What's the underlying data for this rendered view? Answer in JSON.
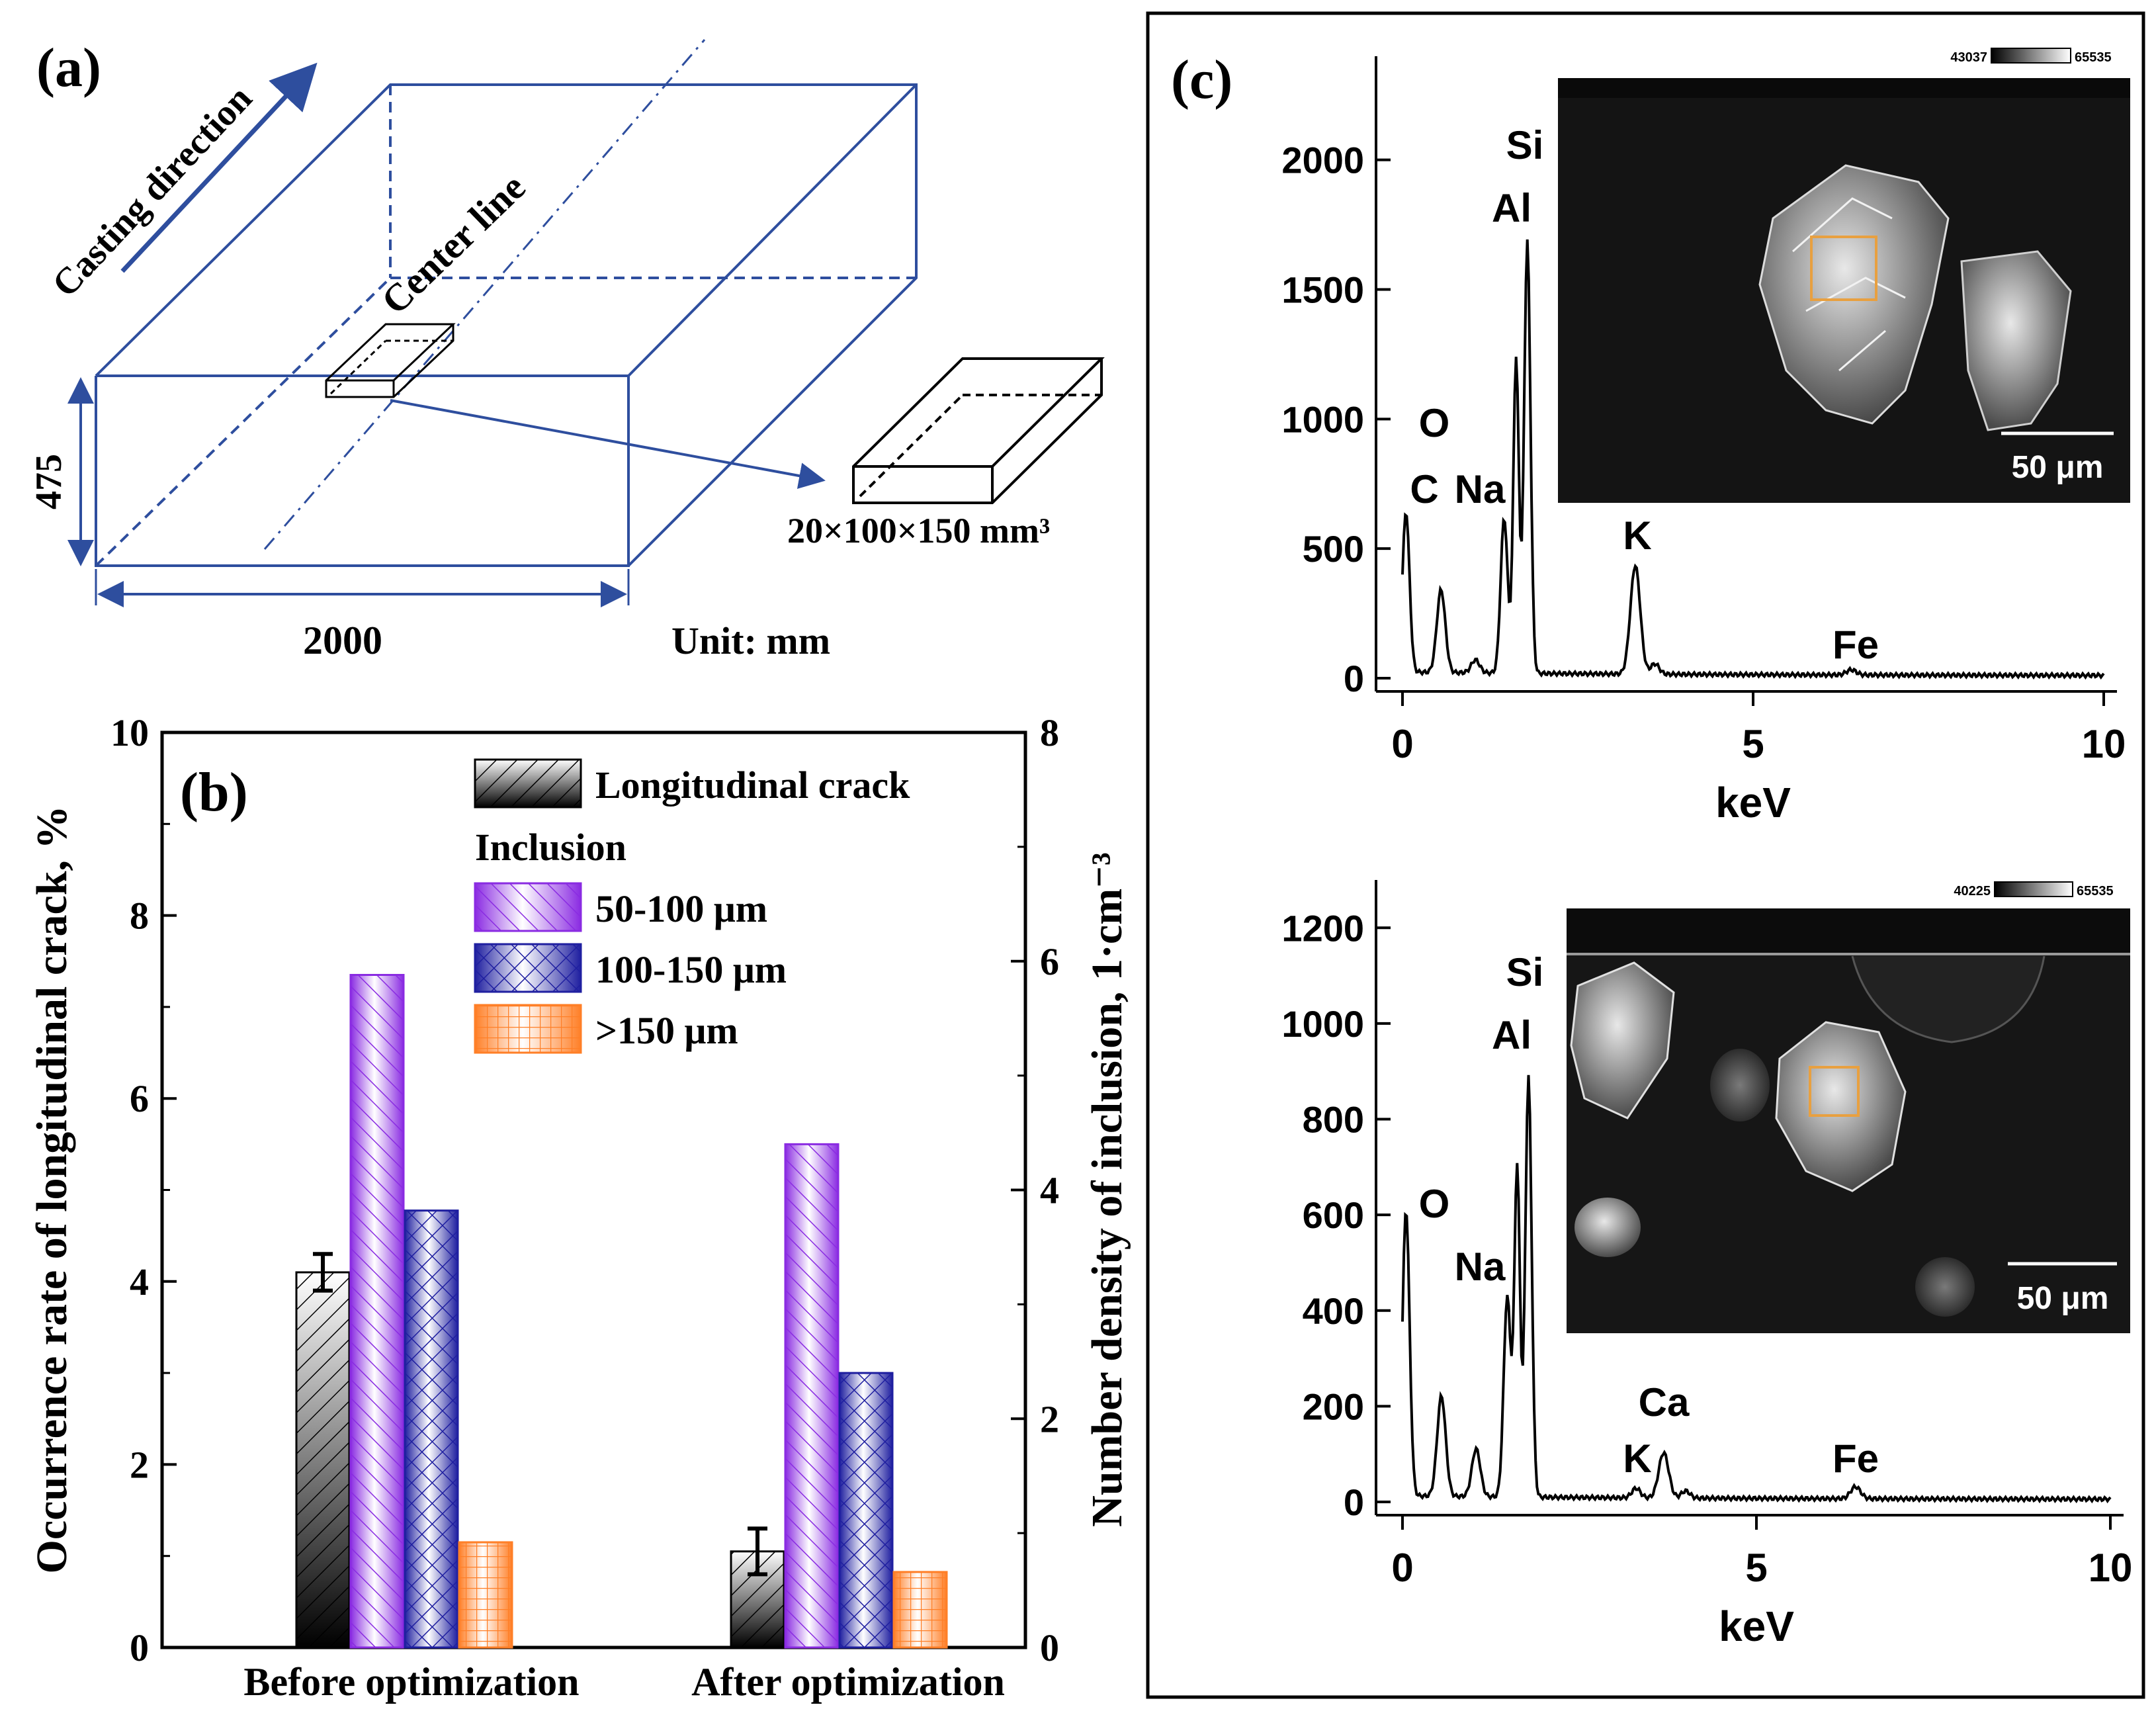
{
  "panel_a": {
    "label": "(a)",
    "casting_direction": "Casting direction",
    "center_line": "Center line",
    "height_dim": "475",
    "width_dim": "2000",
    "sample_dim": "20×100×150 mm³",
    "unit": "Unit: mm"
  },
  "chart_data": [
    {
      "id": "b",
      "type": "bar",
      "label": "(b)",
      "categories": [
        "Before optimization",
        "After optimization"
      ],
      "ylabel_left": "Occurrence rate of longitudinal crack, %",
      "ylabel_right": "Number density of inclusion, 1·cm⁻³",
      "ylim_left": [
        0,
        10
      ],
      "ylim_right": [
        0,
        8
      ],
      "left_ticks": [
        "0",
        "2",
        "4",
        "6",
        "8",
        "10"
      ],
      "right_ticks": [
        "0",
        "2",
        "4",
        "6",
        "8"
      ],
      "legend_title": "Inclusion",
      "series": [
        {
          "name": "Longitudinal crack",
          "axis": "left",
          "values": [
            4.1,
            1.05
          ],
          "error": [
            0.2,
            0.25
          ],
          "color": "#000000"
        },
        {
          "name": "50-100 μm",
          "axis": "right",
          "values": [
            5.88,
            4.4
          ],
          "color": "#8a2be2"
        },
        {
          "name": "100-150 μm",
          "axis": "right",
          "values": [
            3.82,
            2.4
          ],
          "color": "#1f1fa0"
        },
        {
          "name": ">150 μm",
          "axis": "right",
          "values": [
            0.92,
            0.66
          ],
          "color": "#ff7f27"
        }
      ]
    },
    {
      "id": "c1",
      "type": "line",
      "label": "(c)",
      "xlabel": "keV",
      "xlim": [
        0,
        10
      ],
      "ylim": [
        0,
        2400
      ],
      "x_ticks": [
        "0",
        "5",
        "10"
      ],
      "y_ticks": [
        "0",
        "500",
        "1000",
        "1500",
        "2000"
      ],
      "peaks": [
        {
          "x": 0.05,
          "y": 620,
          "w": 0.05
        },
        {
          "x": 0.55,
          "y": 320,
          "w": 0.06
        },
        {
          "x": 1.04,
          "y": 50,
          "w": 0.06
        },
        {
          "x": 1.45,
          "y": 600,
          "w": 0.05
        },
        {
          "x": 1.62,
          "y": 1220,
          "w": 0.04
        },
        {
          "x": 1.78,
          "y": 1670,
          "w": 0.045
        },
        {
          "x": 3.32,
          "y": 420,
          "w": 0.07
        },
        {
          "x": 3.6,
          "y": 40,
          "w": 0.06
        },
        {
          "x": 6.4,
          "y": 20,
          "w": 0.07
        }
      ],
      "element_labels": [
        "Si",
        "Al",
        "O",
        "C",
        "Na",
        "K",
        "Fe"
      ],
      "scale_bar": "50 μm",
      "colorbar_min": "43037",
      "colorbar_max": "65535"
    },
    {
      "id": "c2",
      "type": "line",
      "xlabel": "keV",
      "xlim": [
        0,
        10
      ],
      "ylim": [
        0,
        1300
      ],
      "x_ticks": [
        "0",
        "5",
        "10"
      ],
      "y_ticks": [
        "0",
        "200",
        "400",
        "600",
        "800",
        "1000",
        "1200"
      ],
      "peaks": [
        {
          "x": 0.05,
          "y": 600,
          "w": 0.05
        },
        {
          "x": 0.55,
          "y": 210,
          "w": 0.06
        },
        {
          "x": 1.04,
          "y": 100,
          "w": 0.06
        },
        {
          "x": 1.48,
          "y": 420,
          "w": 0.05
        },
        {
          "x": 1.62,
          "y": 690,
          "w": 0.04
        },
        {
          "x": 1.78,
          "y": 880,
          "w": 0.045
        },
        {
          "x": 3.3,
          "y": 20,
          "w": 0.06
        },
        {
          "x": 3.69,
          "y": 95,
          "w": 0.07
        },
        {
          "x": 4.0,
          "y": 15,
          "w": 0.06
        },
        {
          "x": 6.4,
          "y": 25,
          "w": 0.07
        }
      ],
      "element_labels": [
        "Si",
        "Al",
        "O",
        "Na",
        "Ca",
        "K",
        "Fe"
      ],
      "scale_bar": "50 μm",
      "colorbar_min": "40225",
      "colorbar_max": "65535"
    }
  ]
}
